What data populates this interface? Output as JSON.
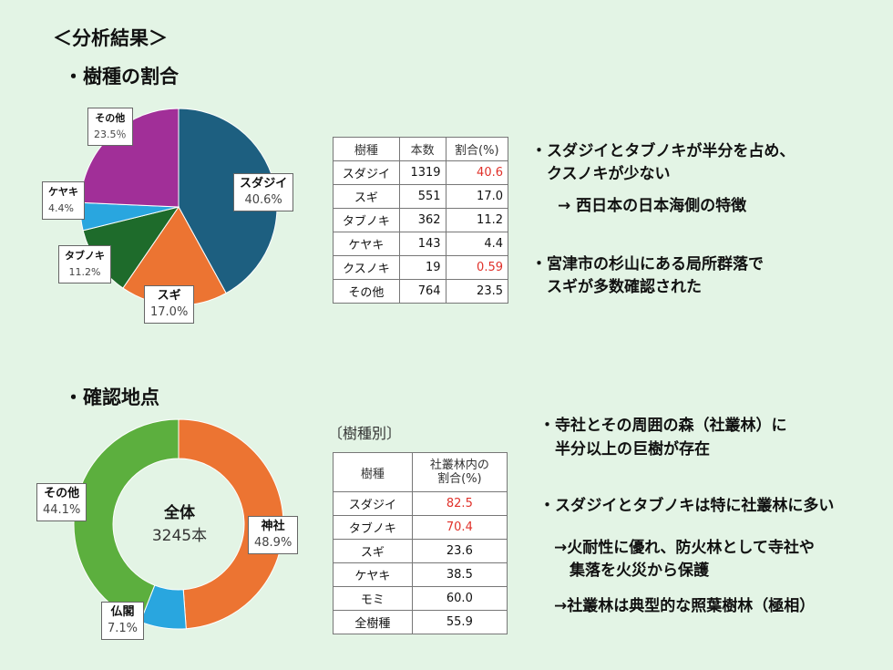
{
  "title": "＜分析結果＞",
  "section1": {
    "heading": "・樹種の割合"
  },
  "section2": {
    "heading": "・確認地点",
    "table_caption": "〔樹種別〕"
  },
  "colors": {
    "sudajii": "#1d5f80",
    "sugi": "#ec7432",
    "tabunoki": "#1e6b2b",
    "keyaki": "#29a6df",
    "other": "#a12f98",
    "jinja": "#ec7432",
    "bukkaku": "#29a6df",
    "sonota": "#5caf3e",
    "highlight": "#e0312a",
    "background": "#e3f4e5"
  },
  "chart_data": [
    {
      "type": "pie",
      "categories": [
        "スダジイ",
        "スギ",
        "タブノキ",
        "ケヤキ",
        "その他"
      ],
      "values": [
        40.6,
        17.0,
        11.2,
        4.4,
        23.5
      ],
      "value_labels": [
        "40.6%",
        "17.0%",
        "11.2%",
        "4.4%",
        "23.5％"
      ],
      "title": ""
    },
    {
      "type": "pie",
      "subtype": "donut",
      "categories": [
        "神社",
        "仏閣",
        "その他"
      ],
      "values": [
        48.9,
        7.1,
        44.1
      ],
      "value_labels": [
        "48.9%",
        "7.1%",
        "44.1%"
      ],
      "center_label": "全体",
      "center_value": "3245本",
      "title": ""
    },
    {
      "type": "table",
      "columns": [
        "樹種",
        "本数",
        "割合(%)"
      ],
      "rows": [
        [
          "スダジイ",
          "1319",
          "40.6"
        ],
        [
          "スギ",
          "551",
          "17.0"
        ],
        [
          "タブノキ",
          "362",
          "11.2"
        ],
        [
          "ケヤキ",
          "143",
          "4.4"
        ],
        [
          "クスノキ",
          "19",
          "0.59"
        ],
        [
          "その他",
          "764",
          "23.5"
        ]
      ],
      "highlighted": [
        "40.6",
        "0.59"
      ]
    },
    {
      "type": "table",
      "columns": [
        "樹種",
        "社叢林内の割合(%)"
      ],
      "column_lines": [
        "社叢林内の",
        "割合(%)"
      ],
      "rows": [
        [
          "スダジイ",
          "82.5"
        ],
        [
          "タブノキ",
          "70.4"
        ],
        [
          "スギ",
          "23.6"
        ],
        [
          "ケヤキ",
          "38.5"
        ],
        [
          "モミ",
          "60.0"
        ],
        [
          "全樹種",
          "55.9"
        ]
      ],
      "highlighted": [
        "82.5",
        "70.4"
      ]
    }
  ],
  "notes1": [
    "・スダジイとタブノキが半分を占め、",
    "　クスノキが少ない",
    "→ 西日本の日本海側の特徴",
    "・宮津市の杉山にある局所群落で",
    "　スギが多数確認された"
  ],
  "notes2": [
    "・寺社とその周囲の森（社叢林）に",
    "　半分以上の巨樹が存在",
    "・スダジイとタブノキは特に社叢林に多い",
    "→火耐性に優れ、防火林として寺社や",
    "　集落を火災から保護",
    "→社叢林は典型的な照葉樹林（極相）"
  ]
}
